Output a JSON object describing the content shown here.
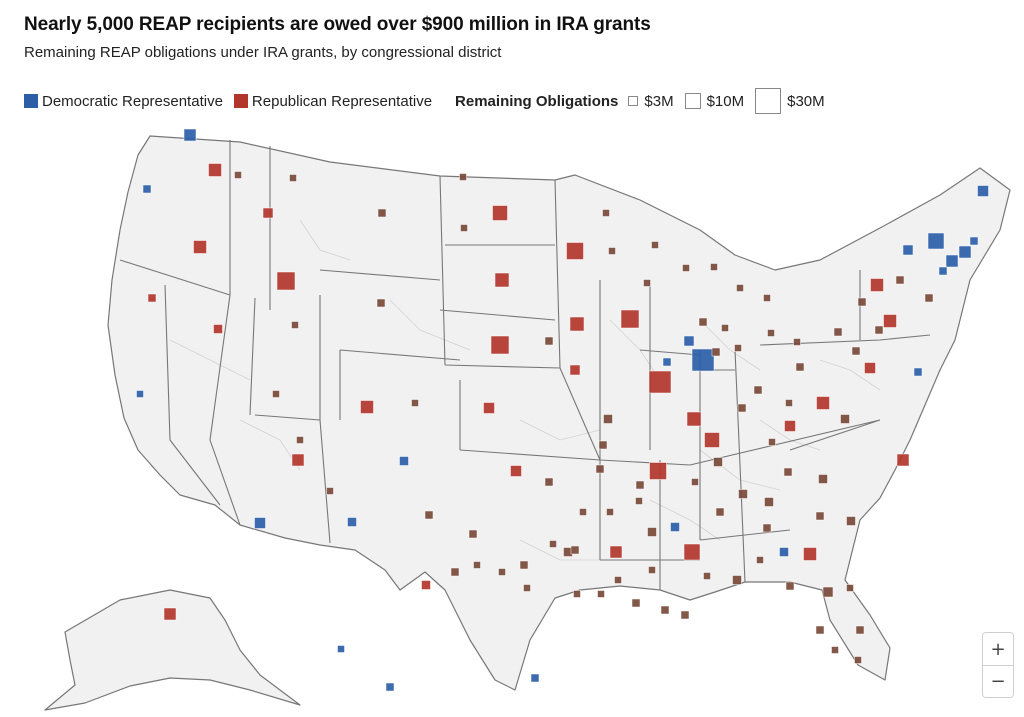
{
  "title": "Nearly 5,000 REAP recipients are owed over $900 million in IRA grants",
  "subtitle": "Remaining REAP obligations under IRA grants, by congressional district",
  "legend": {
    "party": [
      {
        "label": "Democratic Representative",
        "color": "#2c5ea8"
      },
      {
        "label": "Republican Representative",
        "color": "#b3362d"
      }
    ],
    "size_title": "Remaining Obligations",
    "sizes": [
      {
        "label": "$3M",
        "value_millions": 3
      },
      {
        "label": "$10M",
        "value_millions": 10
      },
      {
        "label": "$30M",
        "value_millions": 30
      }
    ]
  },
  "colors": {
    "land": "#f1f1f2",
    "state_border": "#777777",
    "district_border": "#d2d2d4",
    "mixed": "#7a4a3a"
  },
  "zoom": {
    "in_label": "+",
    "out_label": "−"
  }
}
